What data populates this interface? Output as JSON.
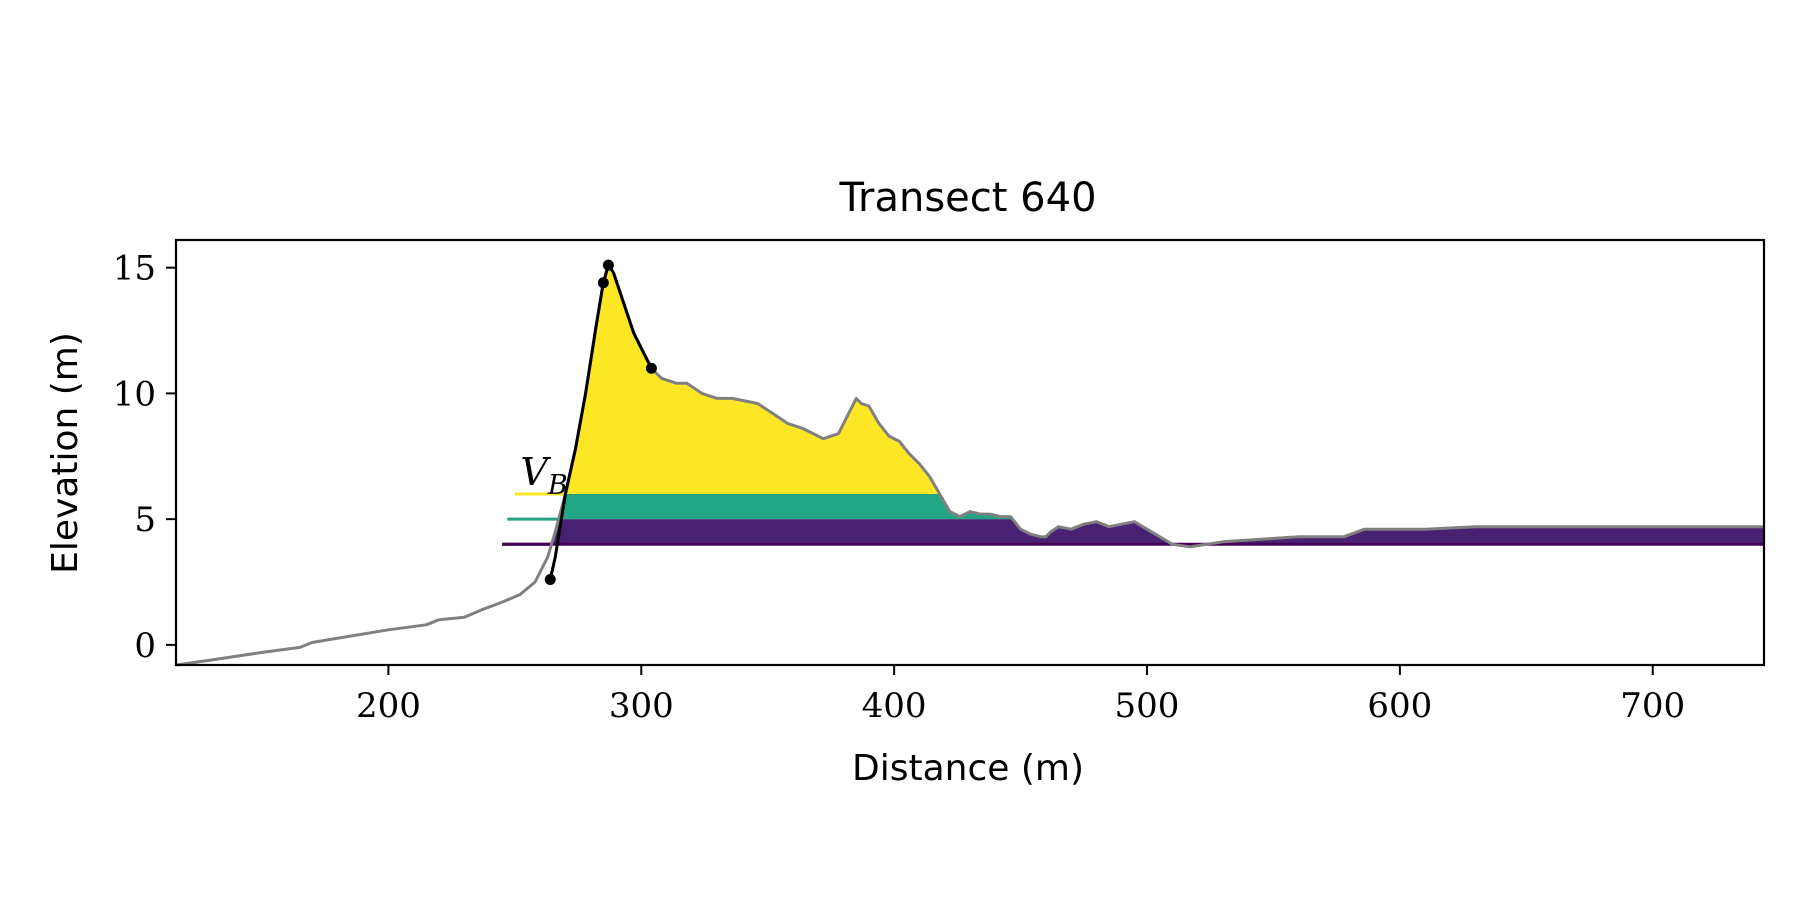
{
  "chart_data": {
    "type": "area",
    "title": "Transect 640",
    "xlabel": "Distance (m)",
    "ylabel": "Elevation (m)",
    "xlim": [
      116,
      744
    ],
    "ylim": [
      -0.8,
      16.1
    ],
    "xticks": [
      200,
      300,
      400,
      500,
      600,
      700
    ],
    "yticks": [
      0,
      5,
      10,
      15
    ],
    "grid": false,
    "legend": "none",
    "annotation": {
      "text": "V",
      "subscript": "B",
      "x": 253,
      "y": 6.0
    },
    "colors": {
      "profile": "#808080",
      "dune": "#000000",
      "upper": "#fde725",
      "middle": "#21a585",
      "lower": "#440154",
      "lower_fill": "#482173"
    },
    "levels": [
      {
        "y": 6.0,
        "x_start": 250,
        "color": "#fde725"
      },
      {
        "y": 5.0,
        "x_start": 247,
        "color": "#21a585"
      },
      {
        "y": 4.0,
        "x_start": 245,
        "color": "#440154"
      }
    ],
    "profile": {
      "x": [
        116,
        130,
        150,
        165,
        170,
        200,
        215,
        220,
        230,
        237,
        245,
        252,
        258,
        263,
        266,
        270,
        274,
        278,
        282,
        285,
        287,
        289,
        293,
        297,
        301,
        304,
        308,
        314,
        318,
        324,
        330,
        336,
        346,
        352,
        358,
        364,
        368,
        372,
        378,
        382,
        385,
        387,
        390,
        394,
        398,
        402,
        406,
        410,
        414,
        418,
        422,
        426,
        430,
        434,
        438,
        442,
        446,
        450,
        454,
        458,
        460,
        462,
        465,
        470,
        475,
        480,
        485,
        490,
        495,
        500,
        505,
        510,
        517,
        530,
        545,
        560,
        568,
        578,
        586,
        592,
        610,
        630,
        650,
        670,
        690,
        710,
        730,
        744
      ],
      "y": [
        -0.8,
        -0.6,
        -0.3,
        -0.1,
        0.1,
        0.6,
        0.8,
        1.0,
        1.1,
        1.4,
        1.7,
        2.0,
        2.5,
        3.5,
        4.5,
        6.0,
        7.8,
        10.0,
        12.6,
        14.4,
        15.1,
        14.8,
        13.6,
        12.4,
        11.6,
        11.0,
        10.6,
        10.4,
        10.4,
        10.0,
        9.8,
        9.8,
        9.6,
        9.2,
        8.8,
        8.6,
        8.4,
        8.2,
        8.4,
        9.2,
        9.8,
        9.6,
        9.5,
        8.8,
        8.3,
        8.1,
        7.6,
        7.2,
        6.7,
        6.0,
        5.3,
        5.1,
        5.3,
        5.2,
        5.2,
        5.1,
        5.1,
        4.6,
        4.4,
        4.3,
        4.3,
        4.5,
        4.7,
        4.6,
        4.8,
        4.9,
        4.7,
        4.8,
        4.9,
        4.6,
        4.3,
        4.0,
        3.9,
        4.1,
        4.2,
        4.3,
        4.3,
        4.3,
        4.6,
        4.6,
        4.6,
        4.7,
        4.7,
        4.7,
        4.7,
        4.7,
        4.7,
        4.7
      ]
    },
    "dune_face": {
      "x": [
        264,
        266,
        270,
        274,
        278,
        282,
        285,
        287,
        289,
        293,
        297,
        301,
        304
      ],
      "y": [
        2.6,
        3.5,
        6.0,
        7.8,
        10.0,
        12.6,
        14.4,
        15.1,
        14.8,
        13.6,
        12.4,
        11.6,
        11.0
      ]
    },
    "markers": {
      "x": [
        264,
        285,
        287,
        304
      ],
      "y": [
        2.6,
        14.4,
        15.1,
        11.0
      ]
    }
  }
}
